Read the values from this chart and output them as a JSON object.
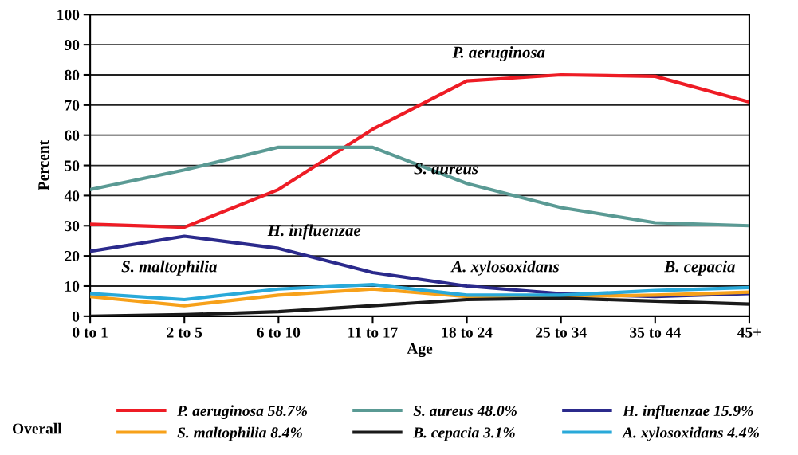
{
  "chart_data": {
    "type": "line",
    "xlabel": "Age",
    "ylabel": "Percent",
    "legend_title": "Overall",
    "categories": [
      "0 to 1",
      "2 to 5",
      "6 to 10",
      "11 to 17",
      "18 to 24",
      "25 to 34",
      "35 to 44",
      "45+"
    ],
    "series": [
      {
        "name": "P. aeruginosa 58.7%",
        "color": "#ee1c25",
        "values": [
          30.5,
          29.5,
          42,
          62,
          78,
          80,
          79.5,
          71
        ]
      },
      {
        "name": "S. aureus 48.0%",
        "color": "#5a9a94",
        "values": [
          42,
          48.5,
          56,
          56,
          44,
          36,
          31,
          30
        ]
      },
      {
        "name": "H. influenzae 15.9%",
        "color": "#2b2a8c",
        "values": [
          21.5,
          26.5,
          22.5,
          14.5,
          10,
          7.5,
          6.5,
          7.5
        ]
      },
      {
        "name": "S. maltophilia 8.4%",
        "color": "#f7a11a",
        "values": [
          6.5,
          3.5,
          7,
          9,
          6.5,
          6.5,
          7,
          8
        ]
      },
      {
        "name": "B. cepacia 3.1%",
        "color": "#1a1a1a",
        "values": [
          0,
          0.5,
          1.5,
          3.5,
          5.5,
          6,
          5,
          4
        ]
      },
      {
        "name": "A. xylosoxidans 4.4%",
        "color": "#29a9d9",
        "values": [
          7.5,
          5.5,
          9,
          10.5,
          7,
          7,
          8.5,
          9.5
        ]
      }
    ],
    "annotations": [
      "P. aeruginosa",
      "S. aureus",
      "H. influenzae",
      "S. maltophilia",
      "A. xylosoxidans",
      "B. cepacia"
    ],
    "ylim": [
      0,
      100
    ],
    "yticks": [
      0,
      10,
      20,
      30,
      40,
      50,
      60,
      70,
      80,
      90,
      100
    ],
    "grid": "y",
    "legend": "bottom",
    "marker": "none",
    "line_style": "solid"
  }
}
